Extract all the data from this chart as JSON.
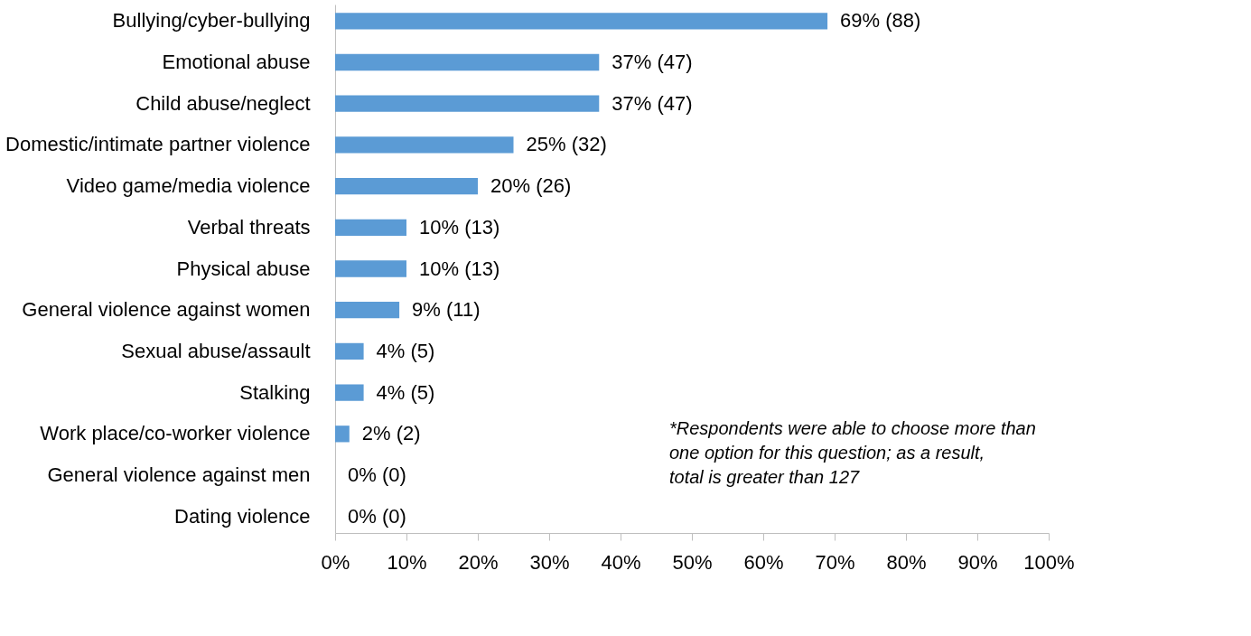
{
  "chart_data": {
    "type": "bar",
    "orientation": "horizontal",
    "categories": [
      "Bullying/cyber-bullying",
      "Emotional abuse",
      "Child abuse/neglect",
      "Domestic/intimate partner violence",
      "Video game/media violence",
      "Verbal threats",
      "Physical abuse",
      "General violence against women",
      "Sexual abuse/assault",
      "Stalking",
      "Work place/co-worker violence",
      "General violence against men",
      "Dating violence"
    ],
    "values": [
      69,
      37,
      37,
      25,
      20,
      10,
      10,
      9,
      4,
      4,
      2,
      0,
      0
    ],
    "value_labels": [
      "69% (88)",
      "37% (47)",
      "37% (47)",
      "25% (32)",
      "20% (26)",
      "10% (13)",
      "10% (13)",
      "9% (11)",
      "4% (5)",
      "4% (5)",
      "2% (2)",
      "0% (0)",
      "0% (0)"
    ],
    "color": "#5b9bd5",
    "xlim": [
      0,
      100
    ],
    "xticks": [
      {
        "value": 0,
        "label": "0%"
      },
      {
        "value": 10,
        "label": "10%"
      },
      {
        "value": 20,
        "label": "20%"
      },
      {
        "value": 30,
        "label": "30%"
      },
      {
        "value": 40,
        "label": "40%"
      },
      {
        "value": 50,
        "label": "50%"
      },
      {
        "value": 60,
        "label": "60%"
      },
      {
        "value": 70,
        "label": "70%"
      },
      {
        "value": 80,
        "label": "80%"
      },
      {
        "value": 90,
        "label": "90%"
      },
      {
        "value": 100,
        "label": "100%"
      }
    ],
    "grid": false,
    "annotations": [
      "*Respondents were able to choose more than one option for this question; as a result, total is greater than 127"
    ]
  }
}
